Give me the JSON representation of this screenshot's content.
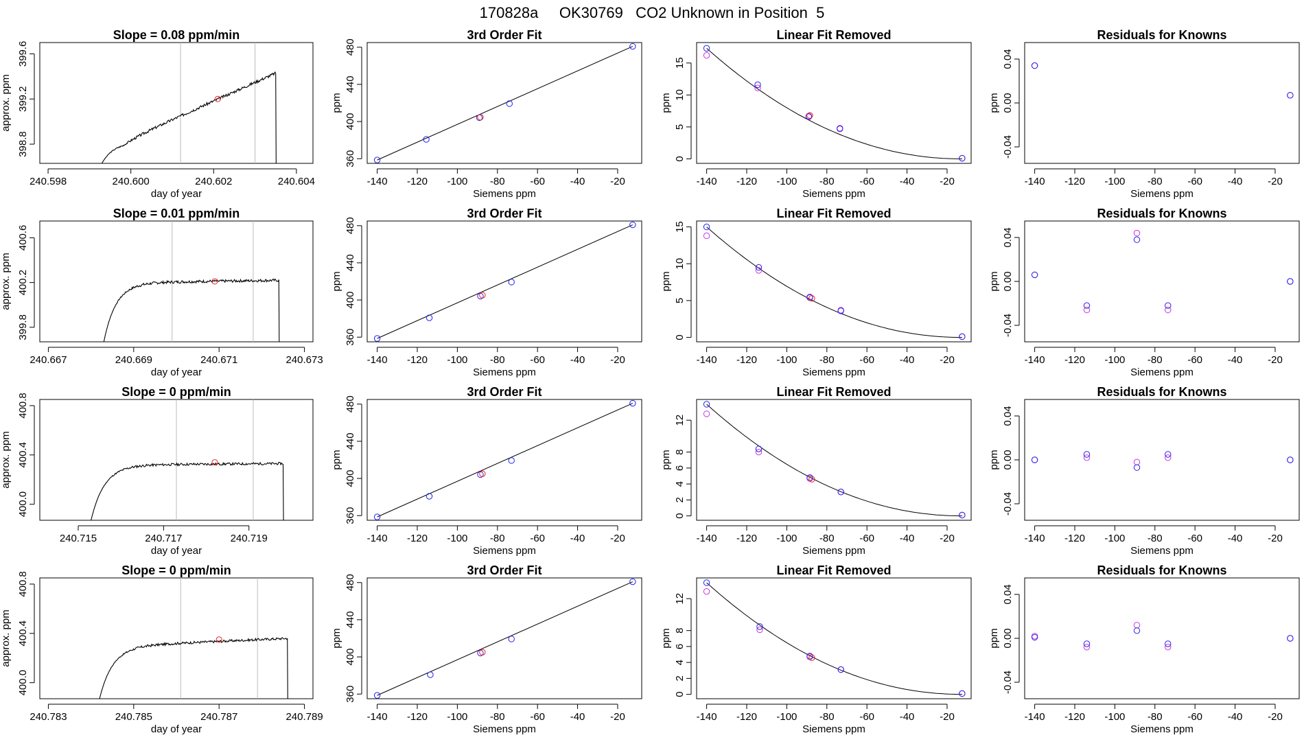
{
  "suptitle": "170828a     OK30769   CO2 Unknown in Position  5",
  "colors": {
    "point_blue": "#2222ee",
    "point_magenta": "#cc33dd",
    "point_red": "#ee2222",
    "gray_line": "#bbbbbb",
    "trace": "#000000"
  },
  "chart_data": [
    {
      "type": "line",
      "title": "Slope =  0.08  ppm/min",
      "xlabel": "day of year",
      "ylabel": "approx. ppm",
      "xlim": [
        240.5978,
        240.6044
      ],
      "ylim": [
        398.63,
        399.7
      ],
      "xticks": [
        240.598,
        240.6,
        240.602,
        240.604
      ],
      "xtick_labels": [
        "240.598",
        "240.600",
        "240.602",
        "240.604"
      ],
      "yticks": [
        398.8,
        399.2,
        399.6
      ],
      "ytick_labels": [
        "398.8",
        "399.2",
        "399.6"
      ],
      "gray_lines": [
        240.6012,
        240.603
      ],
      "trace": {
        "t0": 240.5993,
        "t1": 240.6035,
        "start": 398.63,
        "plateau_start": 398.82,
        "plateau_end": 399.43,
        "noise": 0.025,
        "seed": 3
      },
      "red_point": [
        240.6021,
        399.2
      ]
    },
    {
      "type": "line",
      "title": "Slope =  0.01  ppm/min",
      "xlabel": "day of year",
      "ylabel": "approx. ppm",
      "xlim": [
        240.6668,
        240.6732
      ],
      "ylim": [
        399.67,
        400.75
      ],
      "xticks": [
        240.667,
        240.669,
        240.671,
        240.673
      ],
      "xtick_labels": [
        "240.667",
        "240.669",
        "240.671",
        "240.673"
      ],
      "yticks": [
        399.8,
        400.2,
        400.6
      ],
      "ytick_labels": [
        "399.8",
        "400.2",
        "400.6"
      ],
      "gray_lines": [
        240.6699,
        240.6718
      ],
      "trace": {
        "t0": 240.6683,
        "t1": 240.6724,
        "start": 399.67,
        "plateau_start": 400.2,
        "plateau_end": 400.22,
        "noise": 0.025,
        "seed": 7
      },
      "red_point": [
        240.6709,
        400.21
      ]
    },
    {
      "type": "line",
      "title": "Slope =  0  ppm/min",
      "xlabel": "day of year",
      "ylabel": "approx. ppm",
      "xlim": [
        240.7141,
        240.7205
      ],
      "ylim": [
        399.87,
        400.85
      ],
      "xticks": [
        240.715,
        240.717,
        240.719
      ],
      "xtick_labels": [
        "240.715",
        "240.717",
        "240.719"
      ],
      "gray_lines": [
        240.7173,
        240.7191
      ],
      "yticks": [
        400.0,
        400.4,
        400.8
      ],
      "ytick_labels": [
        "400.0",
        "400.4",
        "400.8"
      ],
      "trace": {
        "t0": 240.7153,
        "t1": 240.7198,
        "start": 399.87,
        "plateau_start": 400.32,
        "plateau_end": 400.33,
        "noise": 0.02,
        "seed": 11
      },
      "red_point": [
        240.7182,
        400.34
      ]
    },
    {
      "type": "line",
      "title": "Slope =  0  ppm/min",
      "xlabel": "day of year",
      "ylabel": "approx. ppm",
      "xlim": [
        240.7828,
        240.7892
      ],
      "ylim": [
        399.87,
        400.85
      ],
      "xticks": [
        240.783,
        240.785,
        240.787,
        240.789
      ],
      "xtick_labels": [
        "240.783",
        "240.785",
        "240.787",
        "240.789"
      ],
      "yticks": [
        400.0,
        400.4,
        400.8
      ],
      "ytick_labels": [
        "400.0",
        "400.4",
        "400.8"
      ],
      "gray_lines": [
        240.7861,
        240.7879
      ],
      "trace": {
        "t0": 240.7842,
        "t1": 240.7886,
        "start": 399.87,
        "plateau_start": 400.3,
        "plateau_end": 400.36,
        "noise": 0.02,
        "seed": 17
      },
      "red_point": [
        240.787,
        400.35
      ]
    },
    {
      "type": "scatter",
      "title": "3rd Order Fit",
      "xlabel": "Siemens ppm",
      "ylabel": "ppm",
      "xlim": [
        -145,
        -8
      ],
      "ylim": [
        355,
        485
      ],
      "xticks": [
        -140,
        -120,
        -100,
        -80,
        -60,
        -40,
        -20
      ],
      "yticks": [
        360,
        400,
        440,
        480
      ],
      "points_blue": [
        [
          -140,
          358.6
        ],
        [
          -115.5,
          380.8
        ],
        [
          -89,
          404.2
        ],
        [
          -74,
          419.3
        ],
        [
          -12.5,
          480.9
        ]
      ],
      "points_red": [
        [
          -88.5,
          404.7
        ]
      ],
      "fit_line": [
        [
          -140,
          358.6
        ],
        [
          -12.5,
          480.9
        ]
      ]
    },
    {
      "type": "scatter",
      "title": "3rd Order Fit",
      "xlabel": "Siemens ppm",
      "ylabel": "ppm",
      "xlim": [
        -145,
        -8
      ],
      "ylim": [
        355,
        485
      ],
      "xticks": [
        -140,
        -120,
        -100,
        -80,
        -60,
        -40,
        -20
      ],
      "yticks": [
        360,
        400,
        440,
        480
      ],
      "points_blue": [
        [
          -140,
          358.6
        ],
        [
          -114,
          380.8
        ],
        [
          -88.5,
          404.2
        ],
        [
          -73,
          419.3
        ],
        [
          -12.5,
          480.9
        ]
      ],
      "points_red": [
        [
          -87.5,
          405.2
        ]
      ],
      "fit_line": [
        [
          -140,
          358.6
        ],
        [
          -12.5,
          480.9
        ]
      ]
    },
    {
      "type": "scatter",
      "title": "3rd Order Fit",
      "xlabel": "Siemens ppm",
      "ylabel": "ppm",
      "xlim": [
        -145,
        -8
      ],
      "ylim": [
        355,
        485
      ],
      "xticks": [
        -140,
        -120,
        -100,
        -80,
        -60,
        -40,
        -20
      ],
      "yticks": [
        360,
        400,
        440,
        480
      ],
      "points_blue": [
        [
          -140,
          358.6
        ],
        [
          -114,
          380.8
        ],
        [
          -88.5,
          404.2
        ],
        [
          -73,
          419.3
        ],
        [
          -12.5,
          480.9
        ]
      ],
      "points_red": [
        [
          -87.5,
          405.0
        ]
      ],
      "fit_line": [
        [
          -140,
          358.6
        ],
        [
          -12.5,
          480.9
        ]
      ]
    },
    {
      "type": "scatter",
      "title": "3rd Order Fit",
      "xlabel": "Siemens ppm",
      "ylabel": "ppm",
      "xlim": [
        -145,
        -8
      ],
      "ylim": [
        355,
        485
      ],
      "xticks": [
        -140,
        -120,
        -100,
        -80,
        -60,
        -40,
        -20
      ],
      "yticks": [
        360,
        400,
        440,
        480
      ],
      "points_blue": [
        [
          -140,
          358.6
        ],
        [
          -113.5,
          380.8
        ],
        [
          -88.5,
          404.2
        ],
        [
          -73,
          419.3
        ],
        [
          -12.5,
          480.9
        ]
      ],
      "points_red": [
        [
          -87.5,
          405.0
        ]
      ],
      "fit_line": [
        [
          -140,
          358.6
        ],
        [
          -12.5,
          480.9
        ]
      ]
    },
    {
      "type": "scatter",
      "title": "Linear Fit Removed",
      "xlabel": "Siemens ppm",
      "ylabel": "ppm",
      "xlim": [
        -145,
        -8
      ],
      "ylim": [
        -0.7,
        18.2
      ],
      "xticks": [
        -140,
        -120,
        -100,
        -80,
        -60,
        -40,
        -20
      ],
      "yticks": [
        0,
        5,
        10,
        15
      ],
      "points_blue": [
        [
          -140,
          17.3
        ],
        [
          -114.5,
          11.6
        ],
        [
          -89,
          6.6
        ],
        [
          -73.5,
          4.7
        ],
        [
          -12.5,
          0.1
        ]
      ],
      "points_magenta": [
        [
          -140,
          16.2
        ],
        [
          -114.5,
          11.1
        ],
        [
          -89,
          6.7
        ],
        [
          -73.5,
          4.8
        ],
        [
          -12.5,
          0.1
        ]
      ],
      "points_red": [
        [
          -88.5,
          6.8
        ]
      ],
      "curve": {
        "x0": -140,
        "x1": -12.5,
        "y0": 17.3,
        "power": 2.05
      }
    },
    {
      "type": "scatter",
      "title": "Linear Fit Removed",
      "xlabel": "Siemens ppm",
      "ylabel": "ppm",
      "xlim": [
        -145,
        -8
      ],
      "ylim": [
        -0.6,
        15.8
      ],
      "xticks": [
        -140,
        -120,
        -100,
        -80,
        -60,
        -40,
        -20
      ],
      "yticks": [
        0,
        5,
        10,
        15
      ],
      "points_blue": [
        [
          -140,
          15.0
        ],
        [
          -114,
          9.5
        ],
        [
          -88.5,
          5.4
        ],
        [
          -73,
          3.6
        ],
        [
          -12.5,
          0.1
        ]
      ],
      "points_magenta": [
        [
          -140,
          13.8
        ],
        [
          -114,
          9.1
        ],
        [
          -88.5,
          5.5
        ],
        [
          -73,
          3.7
        ],
        [
          -12.5,
          0.1
        ]
      ],
      "points_red": [
        [
          -87.5,
          5.3
        ]
      ],
      "curve": {
        "x0": -140,
        "x1": -12.5,
        "y0": 15.0,
        "power": 2.05
      }
    },
    {
      "type": "scatter",
      "title": "Linear Fit Removed",
      "xlabel": "Siemens ppm",
      "ylabel": "ppm",
      "xlim": [
        -145,
        -8
      ],
      "ylim": [
        -0.55,
        14.6
      ],
      "xticks": [
        -140,
        -120,
        -100,
        -80,
        -60,
        -40,
        -20
      ],
      "yticks": [
        0,
        2,
        4,
        6,
        8,
        12
      ],
      "points_blue": [
        [
          -140,
          14.0
        ],
        [
          -114,
          8.4
        ],
        [
          -88.5,
          4.8
        ],
        [
          -73,
          3.0
        ],
        [
          -12.5,
          0.1
        ]
      ],
      "points_magenta": [
        [
          -140,
          12.8
        ],
        [
          -114,
          8.0
        ],
        [
          -88.5,
          4.7
        ],
        [
          -73,
          3.0
        ],
        [
          -12.5,
          0.1
        ]
      ],
      "points_red": [
        [
          -87.5,
          4.6
        ]
      ],
      "curve": {
        "x0": -140,
        "x1": -12.5,
        "y0": 14.0,
        "power": 2.05
      }
    },
    {
      "type": "scatter",
      "title": "Linear Fit Removed",
      "xlabel": "Siemens ppm",
      "ylabel": "ppm",
      "xlim": [
        -145,
        -8
      ],
      "ylim": [
        -0.55,
        14.6
      ],
      "xticks": [
        -140,
        -120,
        -100,
        -80,
        -60,
        -40,
        -20
      ],
      "yticks": [
        0,
        2,
        4,
        6,
        8,
        12
      ],
      "points_blue": [
        [
          -140,
          14.0
        ],
        [
          -113.5,
          8.5
        ],
        [
          -88.5,
          4.8
        ],
        [
          -73,
          3.1
        ],
        [
          -12.5,
          0.1
        ]
      ],
      "points_magenta": [
        [
          -140,
          12.9
        ],
        [
          -113.5,
          8.1
        ],
        [
          -88.5,
          4.7
        ],
        [
          -73,
          3.1
        ],
        [
          -12.5,
          0.1
        ]
      ],
      "points_red": [
        [
          -87.5,
          4.6
        ]
      ],
      "curve": {
        "x0": -140,
        "x1": -12.5,
        "y0": 14.0,
        "power": 2.05
      }
    },
    {
      "type": "scatter",
      "title": "Residuals for Knowns",
      "xlabel": "Siemens ppm",
      "ylabel": "ppm",
      "xlim": [
        -145,
        -8
      ],
      "ylim": [
        -0.055,
        0.055
      ],
      "xticks": [
        -140,
        -120,
        -100,
        -80,
        -60,
        -40,
        -20
      ],
      "yticks": [
        -0.04,
        0.0,
        0.04
      ],
      "ytick_labels": [
        "-0.04",
        "0.00",
        "0.04"
      ],
      "points_blue": [
        [
          -140,
          0.034
        ],
        [
          -12.5,
          0.007
        ]
      ],
      "points_magenta": [
        [
          -140,
          0.034
        ],
        [
          -12.5,
          0.007
        ]
      ]
    },
    {
      "type": "scatter",
      "title": "Residuals for Knowns",
      "xlabel": "Siemens ppm",
      "ylabel": "ppm",
      "xlim": [
        -145,
        -8
      ],
      "ylim": [
        -0.055,
        0.055
      ],
      "xticks": [
        -140,
        -120,
        -100,
        -80,
        -60,
        -40,
        -20
      ],
      "yticks": [
        -0.04,
        0.0,
        0.04
      ],
      "ytick_labels": [
        "-0.04",
        "0.00",
        "0.04"
      ],
      "points_blue": [
        [
          -140,
          0.006
        ],
        [
          -114,
          -0.022
        ],
        [
          -89,
          0.038
        ],
        [
          -73.5,
          -0.022
        ],
        [
          -12.5,
          0.0
        ]
      ],
      "points_magenta": [
        [
          -140,
          0.006
        ],
        [
          -114,
          -0.026
        ],
        [
          -89,
          0.044
        ],
        [
          -73.5,
          -0.026
        ],
        [
          -12.5,
          0.0
        ]
      ]
    },
    {
      "type": "scatter",
      "title": "Residuals for Knowns",
      "xlabel": "Siemens ppm",
      "ylabel": "ppm",
      "xlim": [
        -145,
        -8
      ],
      "ylim": [
        -0.055,
        0.055
      ],
      "xticks": [
        -140,
        -120,
        -100,
        -80,
        -60,
        -40,
        -20
      ],
      "yticks": [
        -0.04,
        0.0,
        0.04
      ],
      "ytick_labels": [
        "-0.04",
        "0.00",
        "0.04"
      ],
      "points_blue": [
        [
          -140,
          0.0
        ],
        [
          -114,
          0.005
        ],
        [
          -89,
          -0.007
        ],
        [
          -73.5,
          0.005
        ],
        [
          -12.5,
          0.0
        ]
      ],
      "points_magenta": [
        [
          -140,
          0.0
        ],
        [
          -114,
          0.002
        ],
        [
          -89,
          -0.002
        ],
        [
          -73.5,
          0.002
        ],
        [
          -12.5,
          0.0
        ]
      ]
    },
    {
      "type": "scatter",
      "title": "Residuals for Knowns",
      "xlabel": "Siemens ppm",
      "ylabel": "ppm",
      "xlim": [
        -145,
        -8
      ],
      "ylim": [
        -0.055,
        0.055
      ],
      "xticks": [
        -140,
        -120,
        -100,
        -80,
        -60,
        -40,
        -20
      ],
      "yticks": [
        -0.04,
        0.0,
        0.04
      ],
      "ytick_labels": [
        "-0.04",
        "0.00",
        "0.04"
      ],
      "points_blue": [
        [
          -140,
          0.001
        ],
        [
          -114,
          -0.005
        ],
        [
          -89,
          0.007
        ],
        [
          -73.5,
          -0.005
        ],
        [
          -12.5,
          0.0
        ]
      ],
      "points_magenta": [
        [
          -140,
          0.002
        ],
        [
          -114,
          -0.008
        ],
        [
          -89,
          0.012
        ],
        [
          -73.5,
          -0.008
        ],
        [
          -12.5,
          0.0
        ]
      ]
    }
  ]
}
